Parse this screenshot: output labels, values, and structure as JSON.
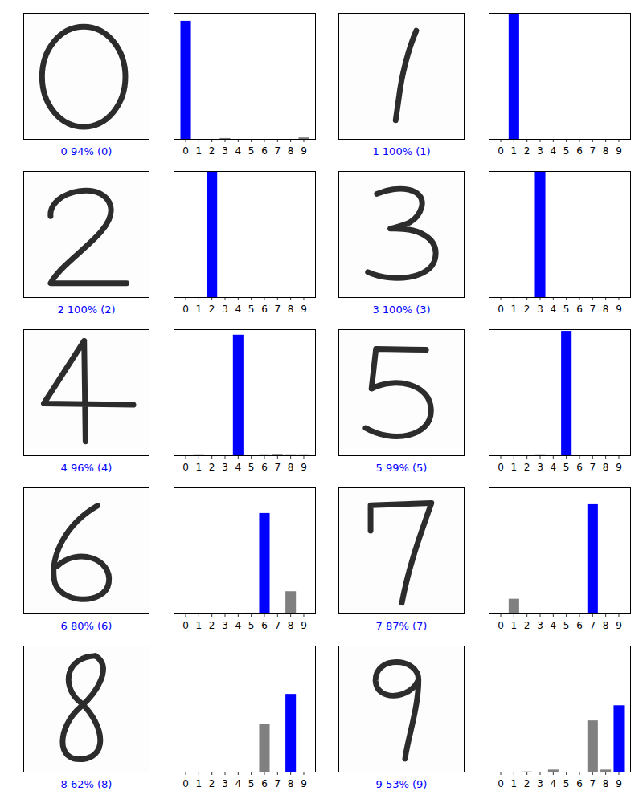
{
  "chart_data": [
    {
      "type": "bar",
      "xlabel": "0 94% (0)",
      "categories": [
        "0",
        "1",
        "2",
        "3",
        "4",
        "5",
        "6",
        "7",
        "8",
        "9"
      ],
      "values": [
        94,
        0,
        0.3,
        1,
        0.2,
        0.2,
        0.2,
        0.2,
        0.3,
        1.5
      ],
      "colors": [
        "#0000ff",
        "#808080",
        "#808080",
        "#808080",
        "#808080",
        "#808080",
        "#808080",
        "#808080",
        "#808080",
        "#808080"
      ],
      "ylim": [
        0,
        100
      ],
      "tick_labels": "x"
    },
    {
      "type": "bar",
      "xlabel": "1 100% (1)",
      "categories": [
        "0",
        "1",
        "2",
        "3",
        "4",
        "5",
        "6",
        "7",
        "8",
        "9"
      ],
      "values": [
        0,
        100,
        0,
        0,
        0,
        0,
        0,
        0,
        0,
        0
      ],
      "colors": [
        "#808080",
        "#0000ff",
        "#808080",
        "#808080",
        "#808080",
        "#808080",
        "#808080",
        "#808080",
        "#808080",
        "#808080"
      ],
      "ylim": [
        0,
        100
      ],
      "tick_labels": "x"
    },
    {
      "type": "bar",
      "xlabel": "2 100% (2)",
      "categories": [
        "0",
        "1",
        "2",
        "3",
        "4",
        "5",
        "6",
        "7",
        "8",
        "9"
      ],
      "values": [
        0,
        0,
        100,
        0,
        0,
        0,
        0,
        0,
        0,
        0
      ],
      "colors": [
        "#808080",
        "#808080",
        "#0000ff",
        "#808080",
        "#808080",
        "#808080",
        "#808080",
        "#808080",
        "#808080",
        "#808080"
      ],
      "ylim": [
        0,
        100
      ],
      "tick_labels": "x"
    },
    {
      "type": "bar",
      "xlabel": "3 100% (3)",
      "categories": [
        "0",
        "1",
        "2",
        "3",
        "4",
        "5",
        "6",
        "7",
        "8",
        "9"
      ],
      "values": [
        0,
        0,
        0.2,
        100,
        0,
        0,
        0,
        0,
        0,
        0
      ],
      "colors": [
        "#808080",
        "#808080",
        "#808080",
        "#0000ff",
        "#808080",
        "#808080",
        "#808080",
        "#808080",
        "#808080",
        "#808080"
      ],
      "ylim": [
        0,
        100
      ],
      "tick_labels": "x"
    },
    {
      "type": "bar",
      "xlabel": "4 96% (4)",
      "categories": [
        "0",
        "1",
        "2",
        "3",
        "4",
        "5",
        "6",
        "7",
        "8",
        "9"
      ],
      "values": [
        0,
        0.5,
        0.3,
        0.1,
        96,
        0.3,
        0.5,
        0.8,
        0.5,
        0.5
      ],
      "colors": [
        "#808080",
        "#808080",
        "#808080",
        "#808080",
        "#0000ff",
        "#808080",
        "#808080",
        "#808080",
        "#808080",
        "#808080"
      ],
      "ylim": [
        0,
        100
      ],
      "tick_labels": "x"
    },
    {
      "type": "bar",
      "xlabel": "5 99% (5)",
      "categories": [
        "0",
        "1",
        "2",
        "3",
        "4",
        "5",
        "6",
        "7",
        "8",
        "9"
      ],
      "values": [
        0,
        0,
        0,
        0.5,
        0,
        99,
        0,
        0,
        0,
        0
      ],
      "colors": [
        "#808080",
        "#808080",
        "#808080",
        "#808080",
        "#808080",
        "#0000ff",
        "#808080",
        "#808080",
        "#808080",
        "#808080"
      ],
      "ylim": [
        0,
        100
      ],
      "tick_labels": "x"
    },
    {
      "type": "bar",
      "xlabel": "6 80% (6)",
      "categories": [
        "0",
        "1",
        "2",
        "3",
        "4",
        "5",
        "6",
        "7",
        "8",
        "9"
      ],
      "values": [
        0,
        0,
        0,
        0,
        0,
        1,
        80,
        0,
        18,
        0
      ],
      "colors": [
        "#808080",
        "#808080",
        "#808080",
        "#808080",
        "#808080",
        "#808080",
        "#0000ff",
        "#808080",
        "#808080",
        "#808080"
      ],
      "ylim": [
        0,
        100
      ],
      "tick_labels": "x"
    },
    {
      "type": "bar",
      "xlabel": "7 87% (7)",
      "categories": [
        "0",
        "1",
        "2",
        "3",
        "4",
        "5",
        "6",
        "7",
        "8",
        "9"
      ],
      "values": [
        0,
        12,
        0.5,
        0,
        0,
        0,
        0,
        87,
        0.5,
        0
      ],
      "colors": [
        "#808080",
        "#808080",
        "#808080",
        "#808080",
        "#808080",
        "#808080",
        "#808080",
        "#0000ff",
        "#808080",
        "#808080"
      ],
      "ylim": [
        0,
        100
      ],
      "tick_labels": "x"
    },
    {
      "type": "bar",
      "xlabel": "8 62% (8)",
      "categories": [
        "0",
        "1",
        "2",
        "3",
        "4",
        "5",
        "6",
        "7",
        "8",
        "9"
      ],
      "values": [
        0,
        0,
        0,
        0,
        0,
        0.3,
        38,
        0.3,
        62,
        0
      ],
      "colors": [
        "#808080",
        "#808080",
        "#808080",
        "#808080",
        "#808080",
        "#808080",
        "#808080",
        "#808080",
        "#0000ff",
        "#808080"
      ],
      "ylim": [
        0,
        100
      ],
      "tick_labels": "x"
    },
    {
      "type": "bar",
      "xlabel": "9 53% (9)",
      "categories": [
        "0",
        "1",
        "2",
        "3",
        "4",
        "5",
        "6",
        "7",
        "8",
        "9"
      ],
      "values": [
        0,
        0,
        0.5,
        0,
        2,
        0,
        0,
        41,
        2,
        53
      ],
      "colors": [
        "#808080",
        "#808080",
        "#808080",
        "#808080",
        "#808080",
        "#808080",
        "#808080",
        "#808080",
        "#808080",
        "#0000ff"
      ],
      "ylim": [
        0,
        100
      ],
      "tick_labels": "x"
    }
  ]
}
